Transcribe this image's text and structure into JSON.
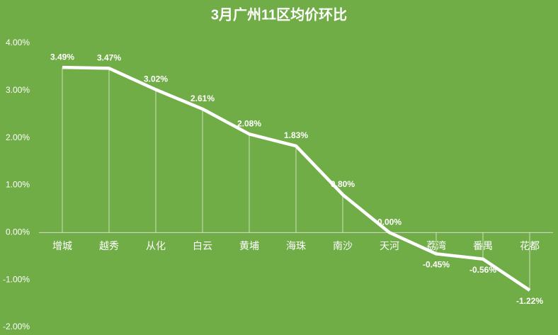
{
  "chart_data": {
    "type": "line",
    "title": "3月广州11区均价环比",
    "categories": [
      "增城",
      "越秀",
      "从化",
      "白云",
      "黄埔",
      "海珠",
      "南沙",
      "天河",
      "荔湾",
      "番禺",
      "花都"
    ],
    "values": [
      3.49,
      3.47,
      3.02,
      2.61,
      2.08,
      1.83,
      0.8,
      0.0,
      -0.45,
      -0.56,
      -1.22
    ],
    "value_labels": [
      "3.49%",
      "3.47%",
      "3.02%",
      "2.61%",
      "2.08%",
      "1.83%",
      "0.80%",
      "0.00%",
      "-0.45%",
      "-0.56%",
      "-1.22%"
    ],
    "color": "#ffffff",
    "ylim": [
      -2,
      4
    ],
    "yticks": [
      {
        "value": -2,
        "label": "-2.00%"
      },
      {
        "value": -1,
        "label": "-1.00%"
      },
      {
        "value": 0,
        "label": "0.00%"
      },
      {
        "value": 1,
        "label": "1.00%"
      },
      {
        "value": 2,
        "label": "2.00%"
      },
      {
        "value": 3,
        "label": "3.00%"
      },
      {
        "value": 4,
        "label": "4.00%"
      }
    ],
    "grid": false,
    "drop_lines": true
  }
}
